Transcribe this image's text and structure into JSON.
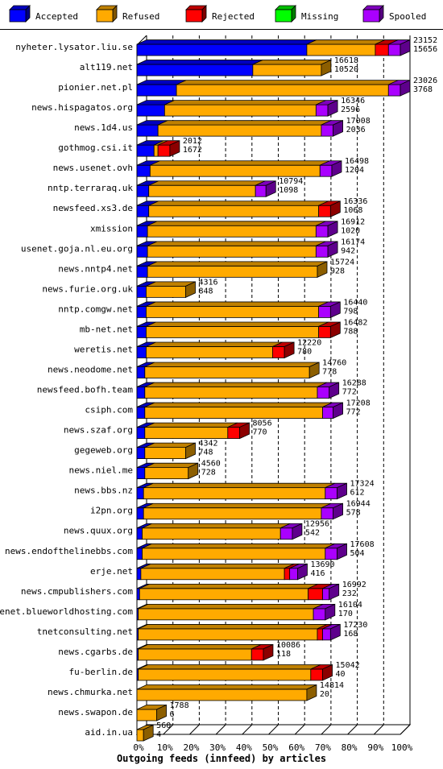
{
  "chart_data": {
    "type": "bar",
    "orientation": "horizontal",
    "stacked": true,
    "title": "",
    "xlabel": "Outgoing feeds (innfeed) by articles",
    "ylabel": "",
    "xlim": [
      0,
      100
    ],
    "x_unit": "%",
    "x_ticks": [
      "0%",
      "10%",
      "20%",
      "30%",
      "40%",
      "50%",
      "60%",
      "70%",
      "80%",
      "90%",
      "100%"
    ],
    "grid": true,
    "legend_position": "top",
    "series": [
      {
        "name": "Accepted",
        "color": "#0000ff"
      },
      {
        "name": "Refused",
        "color": "#ffaa00"
      },
      {
        "name": "Rejected",
        "color": "#ff0000"
      },
      {
        "name": "Missing",
        "color": "#00ff00"
      },
      {
        "name": "Spooled",
        "color": "#aa00ff"
      }
    ],
    "categories": [
      "nyheter.lysator.liu.se",
      "alt119.net",
      "pionier.net.pl",
      "news.hispagatos.org",
      "news.1d4.us",
      "gothmog.csi.it",
      "news.usenet.ovh",
      "nntp.terraraq.uk",
      "newsfeed.xs3.de",
      "xmission",
      "usenet.goja.nl.eu.org",
      "news.nntp4.net",
      "news.furie.org.uk",
      "nntp.comgw.net",
      "mb-net.net",
      "weretis.net",
      "news.neodome.net",
      "newsfeed.bofh.team",
      "csiph.com",
      "news.szaf.org",
      "gegeweb.org",
      "news.niel.me",
      "news.bbs.nz",
      "i2pn.org",
      "news.quux.org",
      "news.endofthelinebbs.com",
      "erje.net",
      "news.cmpublishers.com",
      "usenet.blueworldhosting.com",
      "tnetconsulting.net",
      "news.cgarbs.de",
      "fu-berlin.de",
      "news.chmurka.net",
      "news.swapon.de",
      "aid.in.ua"
    ],
    "bars": [
      {
        "total": 23152,
        "accepted": 15656,
        "refused": 26.0,
        "rejected": 5.0,
        "missing": 0,
        "spooled": 4.5,
        "accepted_pct": 64.5
      },
      {
        "total": 16618,
        "accepted": 10520,
        "refused": 26.0,
        "rejected": 0,
        "missing": 0,
        "spooled": 0,
        "accepted_pct": 44.0
      },
      {
        "total": 23026,
        "accepted": 3768,
        "refused": 80.5,
        "rejected": 0,
        "missing": 0,
        "spooled": 4.5,
        "accepted_pct": 15.0
      },
      {
        "total": 16346,
        "accepted": 2596,
        "refused": 57.5,
        "rejected": 0,
        "missing": 0,
        "spooled": 4.5,
        "accepted_pct": 10.5
      },
      {
        "total": 17008,
        "accepted": 2036,
        "refused": 62.0,
        "rejected": 0,
        "missing": 0,
        "spooled": 4.5,
        "accepted_pct": 8.0
      },
      {
        "total": 2012,
        "accepted": 1672,
        "refused": 1.5,
        "rejected": 4.5,
        "missing": 0,
        "spooled": 0,
        "accepted_pct": 6.5
      },
      {
        "total": 16498,
        "accepted": 1204,
        "refused": 64.5,
        "rejected": 0,
        "missing": 0,
        "spooled": 4.5,
        "accepted_pct": 5.0
      },
      {
        "total": 10794,
        "accepted": 1098,
        "refused": 40.5,
        "rejected": 0,
        "missing": 0,
        "spooled": 4.0,
        "accepted_pct": 4.5
      },
      {
        "total": 16336,
        "accepted": 1068,
        "refused": 64.5,
        "rejected": 4.5,
        "missing": 0,
        "spooled": 0,
        "accepted_pct": 4.5
      },
      {
        "total": 16912,
        "accepted": 1020,
        "refused": 64.0,
        "rejected": 0,
        "missing": 0,
        "spooled": 4.5,
        "accepted_pct": 4.0
      },
      {
        "total": 16174,
        "accepted": 942,
        "refused": 64.0,
        "rejected": 0,
        "missing": 0,
        "spooled": 4.5,
        "accepted_pct": 4.0
      },
      {
        "total": 15724,
        "accepted": 928,
        "refused": 64.5,
        "rejected": 0,
        "missing": 0,
        "spooled": 0,
        "accepted_pct": 4.0
      },
      {
        "total": 4316,
        "accepted": 848,
        "refused": 15.0,
        "rejected": 0,
        "missing": 0,
        "spooled": 0,
        "accepted_pct": 3.5
      },
      {
        "total": 16440,
        "accepted": 798,
        "refused": 65.5,
        "rejected": 0,
        "missing": 0,
        "spooled": 4.5,
        "accepted_pct": 3.5
      },
      {
        "total": 16482,
        "accepted": 788,
        "refused": 65.5,
        "rejected": 4.5,
        "missing": 0,
        "spooled": 0,
        "accepted_pct": 3.5
      },
      {
        "total": 12220,
        "accepted": 780,
        "refused": 48.0,
        "rejected": 4.5,
        "missing": 0,
        "spooled": 0,
        "accepted_pct": 3.5
      },
      {
        "total": 14760,
        "accepted": 778,
        "refused": 62.5,
        "rejected": 0,
        "missing": 0,
        "spooled": 0,
        "accepted_pct": 3.0
      },
      {
        "total": 16288,
        "accepted": 772,
        "refused": 65.5,
        "rejected": 0,
        "missing": 0,
        "spooled": 4.5,
        "accepted_pct": 3.0
      },
      {
        "total": 17208,
        "accepted": 772,
        "refused": 67.5,
        "rejected": 0,
        "missing": 0,
        "spooled": 4.0,
        "accepted_pct": 3.0
      },
      {
        "total": 8056,
        "accepted": 770,
        "refused": 31.5,
        "rejected": 4.5,
        "missing": 0,
        "spooled": 0,
        "accepted_pct": 3.0
      },
      {
        "total": 4342,
        "accepted": 748,
        "refused": 15.5,
        "rejected": 0,
        "missing": 0,
        "spooled": 0,
        "accepted_pct": 3.0
      },
      {
        "total": 4560,
        "accepted": 728,
        "refused": 16.5,
        "rejected": 0,
        "missing": 0,
        "spooled": 0,
        "accepted_pct": 3.0
      },
      {
        "total": 17324,
        "accepted": 612,
        "refused": 69.0,
        "rejected": 0,
        "missing": 0,
        "spooled": 4.5,
        "accepted_pct": 2.5
      },
      {
        "total": 16944,
        "accepted": 578,
        "refused": 67.5,
        "rejected": 0,
        "missing": 0,
        "spooled": 4.5,
        "accepted_pct": 2.5
      },
      {
        "total": 12956,
        "accepted": 542,
        "refused": 52.5,
        "rejected": 0,
        "missing": 0,
        "spooled": 4.5,
        "accepted_pct": 2.0
      },
      {
        "total": 17608,
        "accepted": 504,
        "refused": 69.5,
        "rejected": 0,
        "missing": 0,
        "spooled": 4.5,
        "accepted_pct": 2.0
      },
      {
        "total": 13690,
        "accepted": 416,
        "refused": 54.5,
        "rejected": 2.0,
        "missing": 0,
        "spooled": 3.0,
        "accepted_pct": 1.5
      },
      {
        "total": 16992,
        "accepted": 232,
        "refused": 64.0,
        "rejected": 5.5,
        "missing": 0,
        "spooled": 2.5,
        "accepted_pct": 1.0
      },
      {
        "total": 16104,
        "accepted": 170,
        "refused": 66.5,
        "rejected": 0,
        "missing": 0,
        "spooled": 4.5,
        "accepted_pct": 0.5
      },
      {
        "total": 17230,
        "accepted": 168,
        "refused": 68.0,
        "rejected": 2.0,
        "missing": 0,
        "spooled": 3.0,
        "accepted_pct": 0.5
      },
      {
        "total": 10086,
        "accepted": 118,
        "refused": 43.0,
        "rejected": 4.5,
        "missing": 0,
        "spooled": 0,
        "accepted_pct": 0.5
      },
      {
        "total": 15042,
        "accepted": 40,
        "refused": 65.5,
        "rejected": 4.5,
        "missing": 0,
        "spooled": 0,
        "accepted_pct": 0.5
      },
      {
        "total": 14814,
        "accepted": 20,
        "refused": 64.5,
        "rejected": 0,
        "missing": 0,
        "spooled": 0,
        "accepted_pct": 0
      },
      {
        "total": 1788,
        "accepted": 6,
        "refused": 7.5,
        "rejected": 0,
        "missing": 0,
        "spooled": 0,
        "accepted_pct": 0
      },
      {
        "total": 560,
        "accepted": 4,
        "refused": 2.5,
        "rejected": 0,
        "missing": 0,
        "spooled": 0,
        "accepted_pct": 0
      }
    ]
  }
}
